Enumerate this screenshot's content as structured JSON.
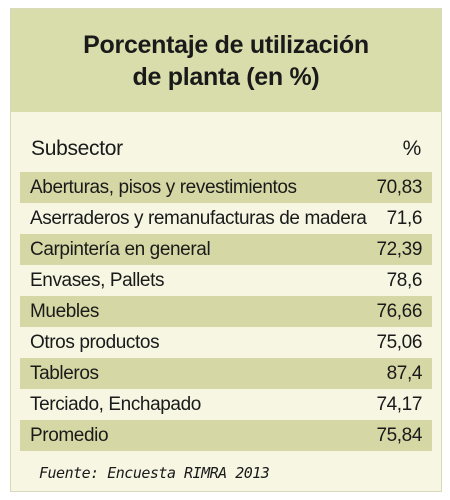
{
  "title": {
    "line1": "Porcentaje de utilización",
    "line2": "de planta (en %)"
  },
  "columns": {
    "subsector": "Subsector",
    "percent": "%"
  },
  "rows": [
    {
      "subsector": "Aberturas, pisos y revestimientos",
      "percent": "70,83"
    },
    {
      "subsector": "Aserraderos y remanufacturas de madera",
      "percent": "71,6"
    },
    {
      "subsector": "Carpintería en general",
      "percent": "72,39"
    },
    {
      "subsector": "Envases, Pallets",
      "percent": "78,6"
    },
    {
      "subsector": "Muebles",
      "percent": "76,66"
    },
    {
      "subsector": "Otros productos",
      "percent": "75,06"
    },
    {
      "subsector": "Tableros",
      "percent": "87,4"
    },
    {
      "subsector": "Terciado, Enchapado",
      "percent": "74,17"
    },
    {
      "subsector": "Promedio",
      "percent": "75,84"
    }
  ],
  "source": "Fuente: Encuesta RIMRA 2013",
  "colors": {
    "header_background": "#d9dcab",
    "body_background": "#f6f6e3",
    "stripe": "#d5d8a4"
  }
}
